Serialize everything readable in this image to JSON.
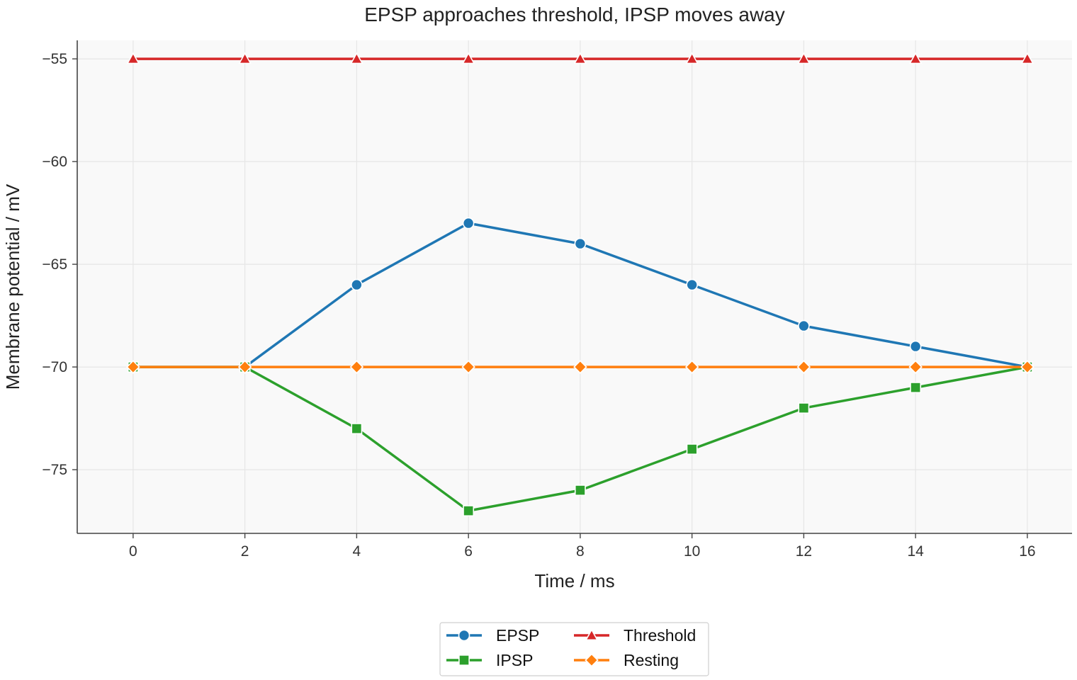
{
  "chart_data": {
    "type": "line",
    "title": "EPSP approaches threshold, IPSP moves away",
    "xlabel": "Time / ms",
    "ylabel": "Membrane potential / mV",
    "x": [
      0,
      2,
      4,
      6,
      8,
      10,
      12,
      14,
      16
    ],
    "xlim": [
      -1,
      16.8
    ],
    "ylim": [
      -78.1,
      -54.1
    ],
    "xticks": [
      0,
      2,
      4,
      6,
      8,
      10,
      12,
      14,
      16
    ],
    "yticks": [
      -75,
      -70,
      -65,
      -60,
      -55
    ],
    "ytick_labels": [
      "−75",
      "−70",
      "−65",
      "−60",
      "−55"
    ],
    "grid": true,
    "legend_position": "bottom-center",
    "series": [
      {
        "name": "EPSP",
        "color": "#1f77b4",
        "marker": "circle",
        "values": [
          -70,
          -70,
          -66,
          -63,
          -64,
          -66,
          -68,
          -69,
          -70
        ]
      },
      {
        "name": "IPSP",
        "color": "#2ca02c",
        "marker": "square",
        "values": [
          -70,
          -70,
          -73,
          -77,
          -76,
          -74,
          -72,
          -71,
          -70
        ]
      },
      {
        "name": "Threshold",
        "color": "#d62728",
        "marker": "triangle",
        "values": [
          -55,
          -55,
          -55,
          -55,
          -55,
          -55,
          -55,
          -55,
          -55
        ]
      },
      {
        "name": "Resting",
        "color": "#ff7f0e",
        "marker": "diamond",
        "values": [
          -70,
          -70,
          -70,
          -70,
          -70,
          -70,
          -70,
          -70,
          -70
        ]
      }
    ]
  }
}
